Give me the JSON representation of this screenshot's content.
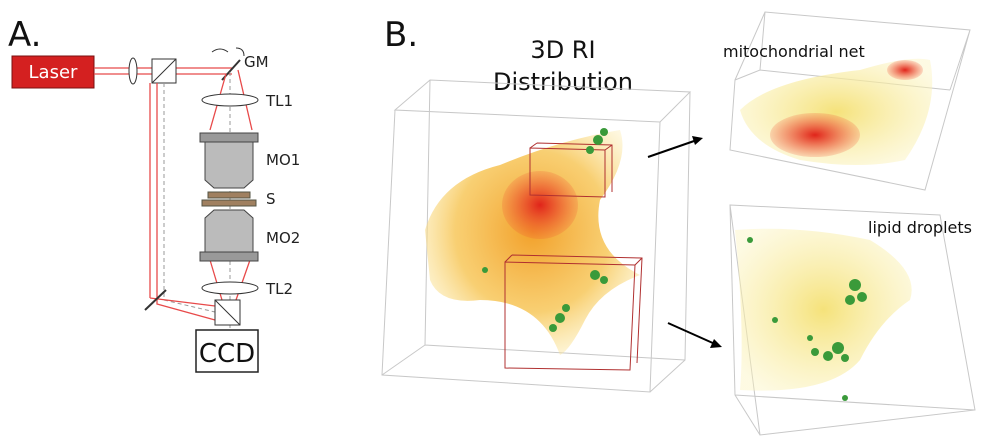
{
  "panel_a": {
    "label": "A.",
    "components": {
      "laser": "Laser",
      "gm": "GM",
      "tl1": "TL1",
      "mo1": "MO1",
      "s": "S",
      "mo2": "MO2",
      "tl2": "TL2",
      "ccd": "CCD"
    }
  },
  "panel_b": {
    "label": "B.",
    "title_lines": [
      "3D RI",
      "Distribution"
    ],
    "insets": [
      "mitochondrial net",
      "lipid droplets"
    ]
  }
}
